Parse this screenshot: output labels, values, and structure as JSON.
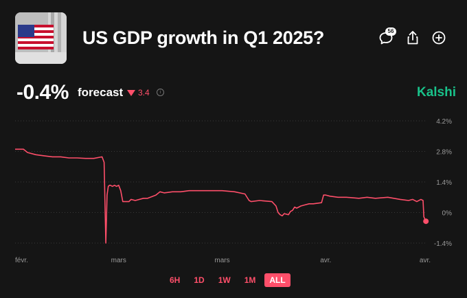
{
  "header": {
    "title": "US GDP growth in Q1 2025?",
    "thumbnail_icon": "us-flag-building-icon",
    "comments_count": "56",
    "comment_icon": "comment-icon",
    "share_icon": "share-icon",
    "add_icon": "plus-circle-icon"
  },
  "summary": {
    "value": "-0.4%",
    "label": "forecast",
    "change": "3.4",
    "change_direction": "down",
    "brand": "Kalshi"
  },
  "colors": {
    "background": "#151515",
    "accent": "#ff4f6a",
    "brand": "#19c28a",
    "axis_text": "#9a9a9a"
  },
  "ranges": [
    {
      "label": "6H",
      "active": false
    },
    {
      "label": "1D",
      "active": false
    },
    {
      "label": "1W",
      "active": false
    },
    {
      "label": "1M",
      "active": false
    },
    {
      "label": "ALL",
      "active": true
    }
  ],
  "chart_data": {
    "type": "line",
    "title": "",
    "xlabel": "",
    "ylabel": "",
    "grid": true,
    "ylim": [
      -1.4,
      4.2
    ],
    "yticks": [
      "4.2%",
      "2.8%",
      "1.4%",
      "0%",
      "-1.4%"
    ],
    "ytick_values": [
      4.2,
      2.8,
      1.4,
      0,
      -1.4
    ],
    "xlim": [
      0,
      1
    ],
    "xtick_labels": [
      "févr.",
      "mars",
      "mars",
      "avr.",
      "avr."
    ],
    "xtick_values": [
      0.0,
      0.25,
      0.5,
      0.75,
      0.99
    ],
    "series": [
      {
        "color": "#ff4f6a",
        "end_marker": true,
        "x": [
          0.0,
          0.02,
          0.03,
          0.05,
          0.07,
          0.09,
          0.11,
          0.13,
          0.15,
          0.17,
          0.19,
          0.21,
          0.215,
          0.219,
          0.222,
          0.225,
          0.228,
          0.23,
          0.235,
          0.24,
          0.245,
          0.25,
          0.255,
          0.26,
          0.275,
          0.28,
          0.29,
          0.31,
          0.32,
          0.34,
          0.35,
          0.36,
          0.38,
          0.4,
          0.42,
          0.44,
          0.47,
          0.5,
          0.53,
          0.555,
          0.565,
          0.57,
          0.59,
          0.62,
          0.63,
          0.635,
          0.64,
          0.645,
          0.65,
          0.66,
          0.665,
          0.67,
          0.675,
          0.68,
          0.69,
          0.7,
          0.71,
          0.72,
          0.74,
          0.745,
          0.75,
          0.76,
          0.78,
          0.8,
          0.83,
          0.85,
          0.87,
          0.9,
          0.93,
          0.95,
          0.96,
          0.97,
          0.98,
          0.985,
          0.987,
          0.992
        ],
        "y": [
          2.9,
          2.9,
          2.75,
          2.65,
          2.6,
          2.55,
          2.55,
          2.5,
          2.5,
          2.48,
          2.48,
          2.55,
          2.3,
          -1.4,
          0.8,
          1.2,
          1.25,
          1.25,
          1.2,
          1.25,
          1.2,
          1.25,
          1.0,
          0.5,
          0.5,
          0.6,
          0.55,
          0.65,
          0.65,
          0.8,
          0.95,
          0.9,
          0.95,
          0.95,
          1.0,
          1.0,
          1.0,
          1.0,
          0.95,
          0.85,
          0.55,
          0.5,
          0.55,
          0.5,
          0.3,
          0.0,
          -0.1,
          -0.15,
          -0.05,
          -0.1,
          0.05,
          0.1,
          0.25,
          0.2,
          0.3,
          0.35,
          0.4,
          0.4,
          0.45,
          0.8,
          0.8,
          0.75,
          0.7,
          0.7,
          0.65,
          0.7,
          0.65,
          0.7,
          0.6,
          0.55,
          0.6,
          0.5,
          0.6,
          0.55,
          -0.2,
          -0.4
        ]
      }
    ]
  }
}
